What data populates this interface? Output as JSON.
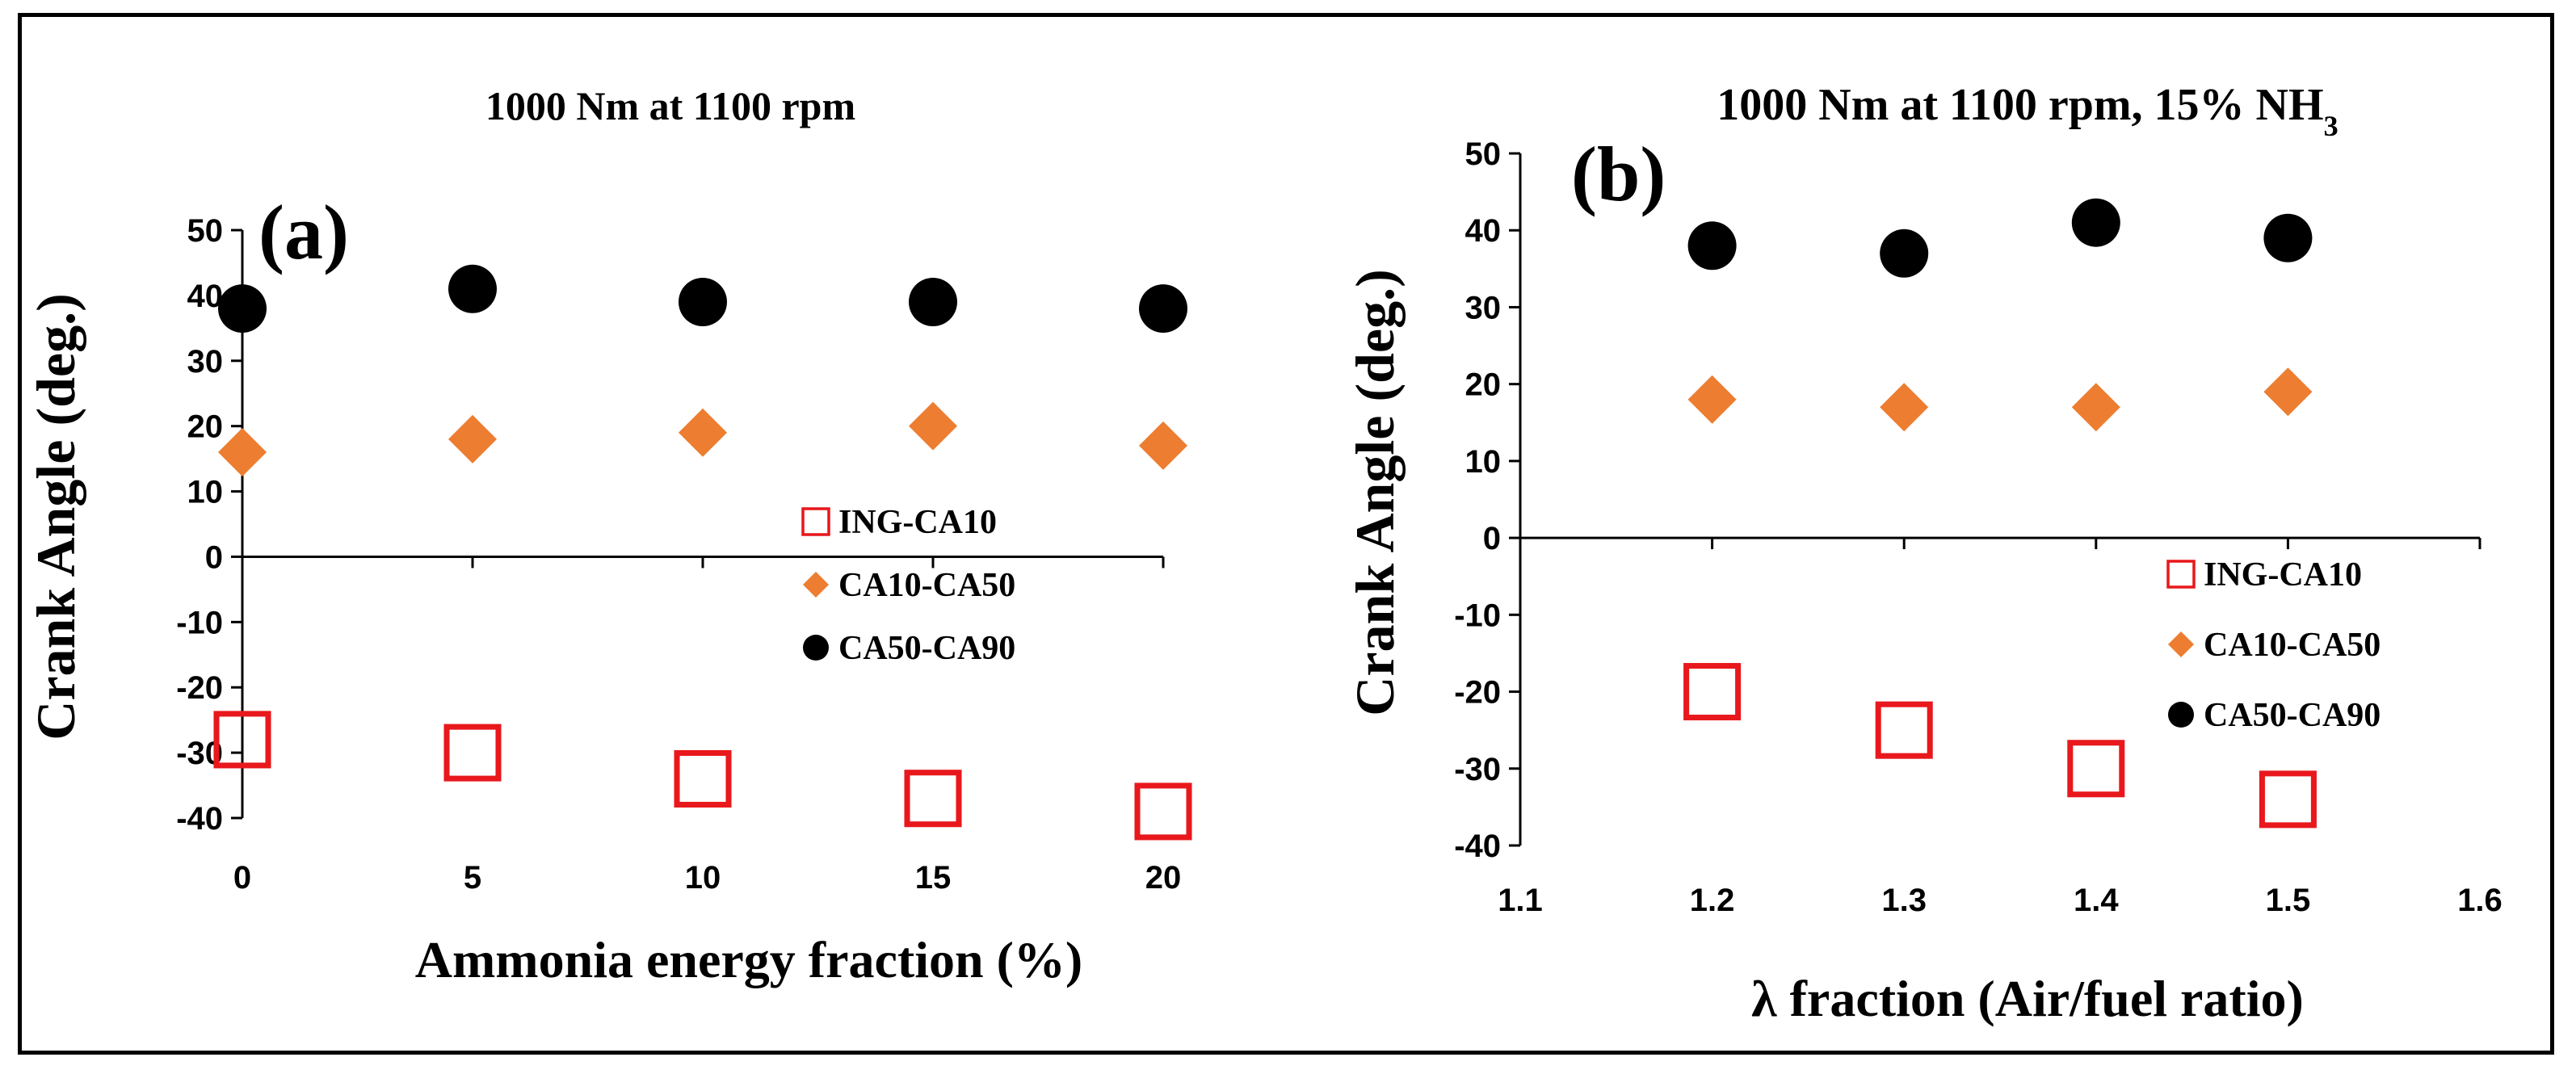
{
  "chart_data": [
    {
      "type": "scatter",
      "panel_label": "(a)",
      "title": "1000 Nm at 1100 rpm",
      "xlabel": "Ammonia energy fraction (%)",
      "ylabel": "Crank Angle (deg.)",
      "xlim": [
        0,
        20
      ],
      "ylim": [
        -40,
        50
      ],
      "x_ticks": [
        "0",
        "5",
        "10",
        "15",
        "20"
      ],
      "y_ticks": [
        "-40",
        "-30",
        "-20",
        "-10",
        "0",
        "10",
        "20",
        "30",
        "40",
        "50"
      ],
      "legend_position": "middle-right",
      "grid": false,
      "x": [
        0,
        5,
        10,
        15,
        20
      ],
      "series": [
        {
          "name": "ING-CA10",
          "marker": "open-square",
          "color": "#e8181c",
          "values": [
            -28,
            -30,
            -34,
            -37,
            -39
          ]
        },
        {
          "name": "CA10-CA50",
          "marker": "diamond",
          "color": "#ed7d31",
          "values": [
            16,
            18,
            19,
            20,
            17
          ]
        },
        {
          "name": "CA50-CA90",
          "marker": "circle",
          "color": "#000000",
          "values": [
            38,
            41,
            39,
            39,
            38
          ]
        }
      ]
    },
    {
      "type": "scatter",
      "panel_label": "(b)",
      "title": "1000 Nm at 1100 rpm, 15% NH",
      "title_subscript": "3",
      "xlabel": "λ fraction (Air/fuel ratio)",
      "ylabel": "Crank Angle (deg.)",
      "xlim": [
        1.1,
        1.6
      ],
      "ylim": [
        -40,
        50
      ],
      "x_ticks": [
        "1.1",
        "1.2",
        "1.3",
        "1.4",
        "1.5",
        "1.6"
      ],
      "y_ticks": [
        "-40",
        "-30",
        "-20",
        "-10",
        "0",
        "10",
        "20",
        "30",
        "40",
        "50"
      ],
      "legend_position": "lower-right",
      "grid": false,
      "x": [
        1.2,
        1.3,
        1.4,
        1.5
      ],
      "series": [
        {
          "name": "ING-CA10",
          "marker": "open-square",
          "color": "#e8181c",
          "values": [
            -20,
            -25,
            -30,
            -34
          ]
        },
        {
          "name": "CA10-CA50",
          "marker": "diamond",
          "color": "#ed7d31",
          "values": [
            18,
            17,
            17,
            19
          ]
        },
        {
          "name": "CA50-CA90",
          "marker": "circle",
          "color": "#000000",
          "values": [
            38,
            37,
            41,
            39
          ]
        }
      ]
    }
  ]
}
